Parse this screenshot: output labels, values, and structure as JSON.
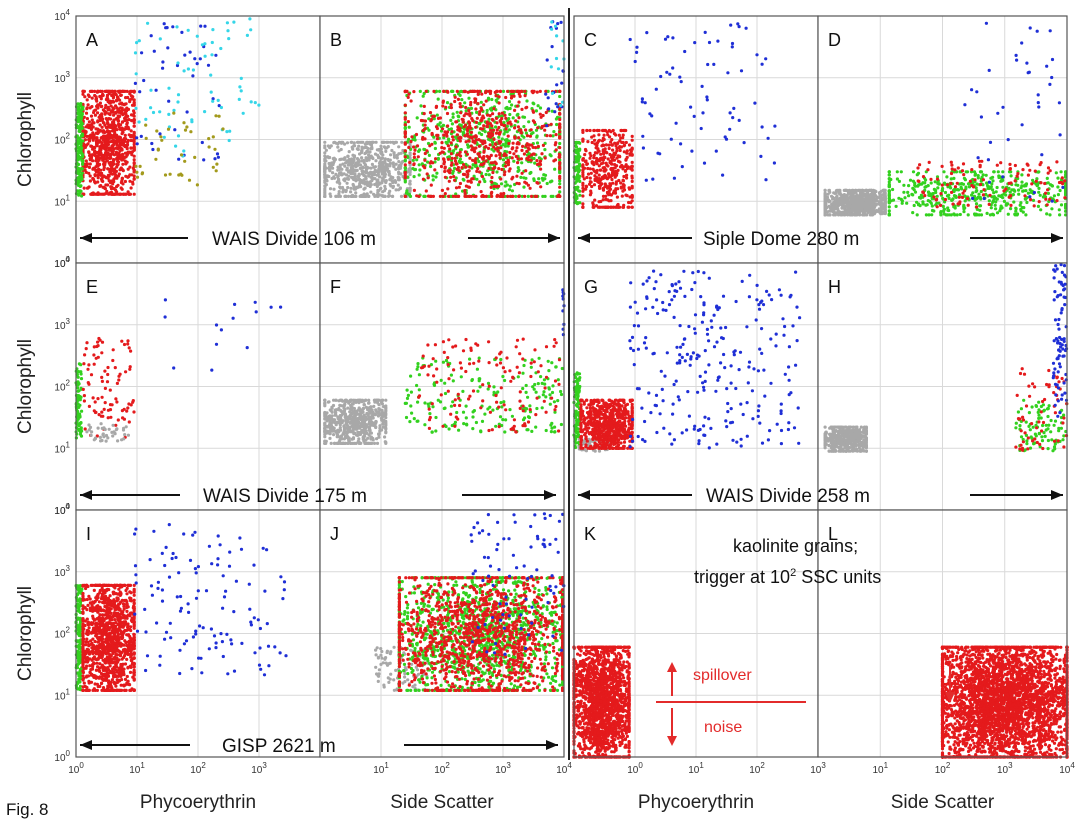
{
  "figure_label": "Fig. 8",
  "colors": {
    "red": "#e41a1c",
    "green": "#33d11f",
    "blue": "#1f2fd6",
    "cyan": "#35d6e8",
    "olive": "#a39a1c",
    "gray": "#a8a8a8",
    "annotation_red": "#e32b2b"
  },
  "axis_titles": {
    "chlorophyll": "Chlorophyll",
    "phycoerythrin": "Phycoerythrin",
    "side_scatter": "Side Scatter"
  },
  "panel_letters": [
    "A",
    "B",
    "C",
    "D",
    "E",
    "F",
    "G",
    "H",
    "I",
    "J",
    "K",
    "L"
  ],
  "row_labels": [
    {
      "left": "WAIS Divide 106 m",
      "right": "Siple Dome 280 m"
    },
    {
      "left": "WAIS Divide 175 m",
      "right": "WAIS Divide 258 m"
    },
    {
      "left": "GISP 2621 m",
      "right": ""
    }
  ],
  "annotations": {
    "kaolinite_line1": "kaolinite grains;",
    "kaolinite_line2": "trigger at 10",
    "kaolinite_sup": "2",
    "kaolinite_line2_end": " SSC units",
    "spillover": "spillover",
    "noise": "noise"
  },
  "y_ticks": [
    {
      "base": "10",
      "exp": "0"
    },
    {
      "base": "10",
      "exp": "1"
    },
    {
      "base": "10",
      "exp": "2"
    },
    {
      "base": "10",
      "exp": "3"
    },
    {
      "base": "10",
      "exp": "4"
    }
  ],
  "x_ticks_pe": [
    {
      "base": "10",
      "exp": "0"
    },
    {
      "base": "10",
      "exp": "1"
    },
    {
      "base": "10",
      "exp": "2"
    },
    {
      "base": "10",
      "exp": "3"
    }
  ],
  "x_ticks_ssc": [
    {
      "base": "10",
      "exp": "1"
    },
    {
      "base": "10",
      "exp": "2"
    },
    {
      "base": "10",
      "exp": "3"
    },
    {
      "base": "10",
      "exp": "4"
    }
  ],
  "chart_data": [
    {
      "type": "scatter",
      "panel": "A",
      "xlabel": "Phycoerythrin",
      "ylabel": "Chlorophyll",
      "xscale": "log",
      "yscale": "log",
      "xlim": [
        1,
        10000
      ],
      "ylim": [
        1,
        10000
      ],
      "series": [
        {
          "color": "red",
          "n": 900,
          "x_range": [
            1.3,
            9
          ],
          "y_range": [
            13,
            600
          ]
        },
        {
          "color": "green",
          "n": 160,
          "x_range": [
            1.0,
            1.3
          ],
          "y_range": [
            12,
            400
          ]
        },
        {
          "color": "blue",
          "n": 45,
          "x_range": [
            9,
            250
          ],
          "y_range": [
            40,
            9000
          ]
        },
        {
          "color": "cyan",
          "n": 65,
          "x_range": [
            9,
            1000
          ],
          "y_range": [
            50,
            9000
          ]
        },
        {
          "color": "olive",
          "n": 40,
          "x_range": [
            9,
            300
          ],
          "y_range": [
            18,
            300
          ]
        }
      ]
    },
    {
      "type": "scatter",
      "panel": "B",
      "xlabel": "Side Scatter",
      "ylabel": "Chlorophyll",
      "xscale": "log",
      "yscale": "log",
      "xlim": [
        1,
        10000
      ],
      "ylim": [
        1,
        10000
      ],
      "series": [
        {
          "color": "gray",
          "n": 650,
          "x_range": [
            1.2,
            30
          ],
          "y_range": [
            12,
            90
          ]
        },
        {
          "color": "green",
          "n": 650,
          "x_range": [
            25,
            8500
          ],
          "y_range": [
            12,
            600
          ]
        },
        {
          "color": "red",
          "n": 650,
          "x_range": [
            25,
            8500
          ],
          "y_range": [
            12,
            600
          ]
        },
        {
          "color": "blue",
          "n": 20,
          "x_range": [
            5000,
            10000
          ],
          "y_range": [
            100,
            9000
          ]
        },
        {
          "color": "cyan",
          "n": 12,
          "x_range": [
            6000,
            10000
          ],
          "y_range": [
            200,
            9000
          ]
        }
      ]
    },
    {
      "type": "scatter",
      "panel": "C",
      "xlabel": "Phycoerythrin",
      "ylabel": "Chlorophyll",
      "xscale": "log",
      "yscale": "log",
      "xlim": [
        1,
        10000
      ],
      "ylim": [
        1,
        10000
      ],
      "series": [
        {
          "color": "green",
          "n": 80,
          "x_range": [
            1.0,
            1.25
          ],
          "y_range": [
            8,
            90
          ]
        },
        {
          "color": "red",
          "n": 420,
          "x_range": [
            1.4,
            9
          ],
          "y_range": [
            8,
            140
          ]
        },
        {
          "color": "blue",
          "n": 75,
          "x_range": [
            8,
            2500
          ],
          "y_range": [
            14,
            7500
          ]
        }
      ]
    },
    {
      "type": "scatter",
      "panel": "D",
      "xlabel": "Side Scatter",
      "ylabel": "Chlorophyll",
      "xscale": "log",
      "yscale": "log",
      "xlim": [
        1,
        10000
      ],
      "ylim": [
        1,
        10000
      ],
      "series": [
        {
          "color": "gray",
          "n": 700,
          "x_range": [
            1.3,
            12
          ],
          "y_range": [
            6,
            15
          ]
        },
        {
          "color": "green",
          "n": 500,
          "x_range": [
            14,
            9500
          ],
          "y_range": [
            6,
            30
          ]
        },
        {
          "color": "red",
          "n": 110,
          "x_range": [
            40,
            9500
          ],
          "y_range": [
            8,
            45
          ]
        },
        {
          "color": "blue",
          "n": 40,
          "x_range": [
            200,
            10000
          ],
          "y_range": [
            8,
            9000
          ]
        }
      ]
    },
    {
      "type": "scatter",
      "panel": "E",
      "xlabel": "Phycoerythrin",
      "ylabel": "Chlorophyll",
      "xscale": "log",
      "yscale": "log",
      "xlim": [
        1,
        10000
      ],
      "ylim": [
        1,
        10000
      ],
      "series": [
        {
          "color": "green",
          "n": 80,
          "x_range": [
            1.0,
            1.25
          ],
          "y_range": [
            14,
            240
          ]
        },
        {
          "color": "red",
          "n": 90,
          "x_range": [
            1.3,
            9
          ],
          "y_range": [
            14,
            600
          ]
        },
        {
          "color": "gray",
          "n": 40,
          "x_range": [
            1.5,
            8
          ],
          "y_range": [
            13,
            25
          ]
        },
        {
          "color": "blue",
          "n": 14,
          "x_range": [
            12,
            2500
          ],
          "y_range": [
            180,
            3200
          ]
        }
      ]
    },
    {
      "type": "scatter",
      "panel": "F",
      "xlabel": "Side Scatter",
      "ylabel": "Chlorophyll",
      "xscale": "log",
      "yscale": "log",
      "xlim": [
        1,
        10000
      ],
      "ylim": [
        1,
        10000
      ],
      "series": [
        {
          "color": "gray",
          "n": 600,
          "x_range": [
            1.2,
            12
          ],
          "y_range": [
            12,
            60
          ]
        },
        {
          "color": "green",
          "n": 200,
          "x_range": [
            25,
            9500
          ],
          "y_range": [
            18,
            300
          ]
        },
        {
          "color": "red",
          "n": 130,
          "x_range": [
            40,
            9500
          ],
          "y_range": [
            18,
            600
          ]
        },
        {
          "color": "blue",
          "n": 10,
          "x_range": [
            9500,
            10000
          ],
          "y_range": [
            600,
            4000
          ]
        }
      ]
    },
    {
      "type": "scatter",
      "panel": "G",
      "xlabel": "Phycoerythrin",
      "ylabel": "Chlorophyll",
      "xscale": "log",
      "yscale": "log",
      "xlim": [
        1,
        10000
      ],
      "ylim": [
        1,
        10000
      ],
      "series": [
        {
          "color": "green",
          "n": 100,
          "x_range": [
            1.0,
            1.25
          ],
          "y_range": [
            10,
            170
          ]
        },
        {
          "color": "gray",
          "n": 60,
          "x_range": [
            1.2,
            4
          ],
          "y_range": [
            9,
            15
          ]
        },
        {
          "color": "red",
          "n": 700,
          "x_range": [
            1.3,
            9
          ],
          "y_range": [
            10,
            60
          ]
        },
        {
          "color": "blue",
          "n": 260,
          "x_range": [
            8,
            5000
          ],
          "y_range": [
            10,
            8000
          ]
        }
      ]
    },
    {
      "type": "scatter",
      "panel": "H",
      "xlabel": "Side Scatter",
      "ylabel": "Chlorophyll",
      "xscale": "log",
      "yscale": "log",
      "xlim": [
        1,
        10000
      ],
      "ylim": [
        1,
        10000
      ],
      "series": [
        {
          "color": "gray",
          "n": 400,
          "x_range": [
            1.3,
            6
          ],
          "y_range": [
            9,
            22
          ]
        },
        {
          "color": "green",
          "n": 90,
          "x_range": [
            1500,
            10000
          ],
          "y_range": [
            9,
            60
          ]
        },
        {
          "color": "red",
          "n": 60,
          "x_range": [
            1500,
            10000
          ],
          "y_range": [
            9,
            200
          ]
        },
        {
          "color": "blue",
          "n": 80,
          "x_range": [
            6000,
            10000
          ],
          "y_range": [
            30,
            9500
          ]
        }
      ]
    },
    {
      "type": "scatter",
      "panel": "I",
      "xlabel": "Phycoerythrin",
      "ylabel": "Chlorophyll",
      "xscale": "log",
      "yscale": "log",
      "xlim": [
        1,
        10000
      ],
      "ylim": [
        1,
        10000
      ],
      "series": [
        {
          "color": "green",
          "n": 160,
          "x_range": [
            1.0,
            1.25
          ],
          "y_range": [
            12,
            600
          ]
        },
        {
          "color": "red",
          "n": 1200,
          "x_range": [
            1.3,
            9
          ],
          "y_range": [
            12,
            600
          ]
        },
        {
          "color": "blue",
          "n": 120,
          "x_range": [
            9,
            3000
          ],
          "y_range": [
            20,
            6000
          ]
        }
      ]
    },
    {
      "type": "scatter",
      "panel": "J",
      "xlabel": "Side Scatter",
      "ylabel": "Chlorophyll",
      "xscale": "log",
      "yscale": "log",
      "xlim": [
        1,
        10000
      ],
      "ylim": [
        1,
        10000
      ],
      "series": [
        {
          "color": "gray",
          "n": 90,
          "x_range": [
            8,
            60
          ],
          "y_range": [
            12,
            60
          ]
        },
        {
          "color": "green",
          "n": 1300,
          "x_range": [
            20,
            9500
          ],
          "y_range": [
            12,
            800
          ]
        },
        {
          "color": "red",
          "n": 1300,
          "x_range": [
            20,
            9500
          ],
          "y_range": [
            12,
            800
          ]
        },
        {
          "color": "blue",
          "n": 80,
          "x_range": [
            300,
            10000
          ],
          "y_range": [
            40,
            9000
          ]
        }
      ]
    },
    {
      "type": "scatter",
      "panel": "K",
      "xlabel": "Phycoerythrin",
      "ylabel": "Chlorophyll",
      "xscale": "log",
      "yscale": "log",
      "xlim": [
        1,
        10000
      ],
      "ylim": [
        1,
        10000
      ],
      "series": [
        {
          "color": "red",
          "n": 1800,
          "x_range": [
            1.0,
            8
          ],
          "y_range": [
            1,
            60
          ]
        }
      ]
    },
    {
      "type": "scatter",
      "panel": "L",
      "xlabel": "Side Scatter",
      "ylabel": "Chlorophyll",
      "xscale": "log",
      "yscale": "log",
      "xlim": [
        1,
        10000
      ],
      "ylim": [
        1,
        10000
      ],
      "series": [
        {
          "color": "red",
          "n": 3500,
          "x_range": [
            100,
            10000
          ],
          "y_range": [
            1,
            60
          ]
        }
      ]
    }
  ]
}
